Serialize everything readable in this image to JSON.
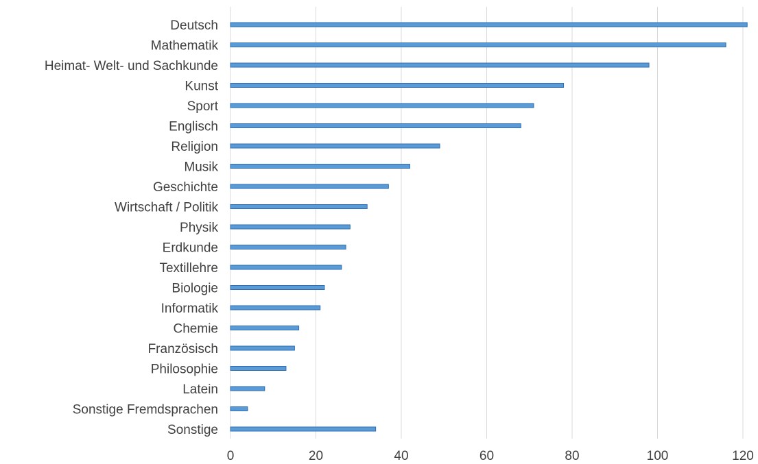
{
  "chart_data": {
    "type": "bar",
    "orientation": "horizontal",
    "categories": [
      "Deutsch",
      "Mathematik",
      "Heimat- Welt- und Sachkunde",
      "Kunst",
      "Sport",
      "Englisch",
      "Religion",
      "Musik",
      "Geschichte",
      "Wirtschaft / Politik",
      "Physik",
      "Erdkunde",
      "Textillehre",
      "Biologie",
      "Informatik",
      "Chemie",
      "Französisch",
      "Philosophie",
      "Latein",
      "Sonstige Fremdsprachen",
      "Sonstige"
    ],
    "values": [
      121,
      116,
      98,
      78,
      71,
      68,
      49,
      42,
      37,
      32,
      28,
      27,
      26,
      22,
      21,
      16,
      15,
      13,
      8,
      4,
      34
    ],
    "title": "",
    "xlabel": "",
    "ylabel": "",
    "xlim": [
      0,
      120
    ],
    "xticks": [
      "0",
      "20",
      "40",
      "60",
      "80",
      "100",
      "120"
    ],
    "grid": "vertical",
    "legend": "none",
    "colors": {
      "bar": "#5b9bd5",
      "bar_edge": "#2e6db3",
      "grid": "#d9d9d9",
      "text": "#404040"
    }
  }
}
